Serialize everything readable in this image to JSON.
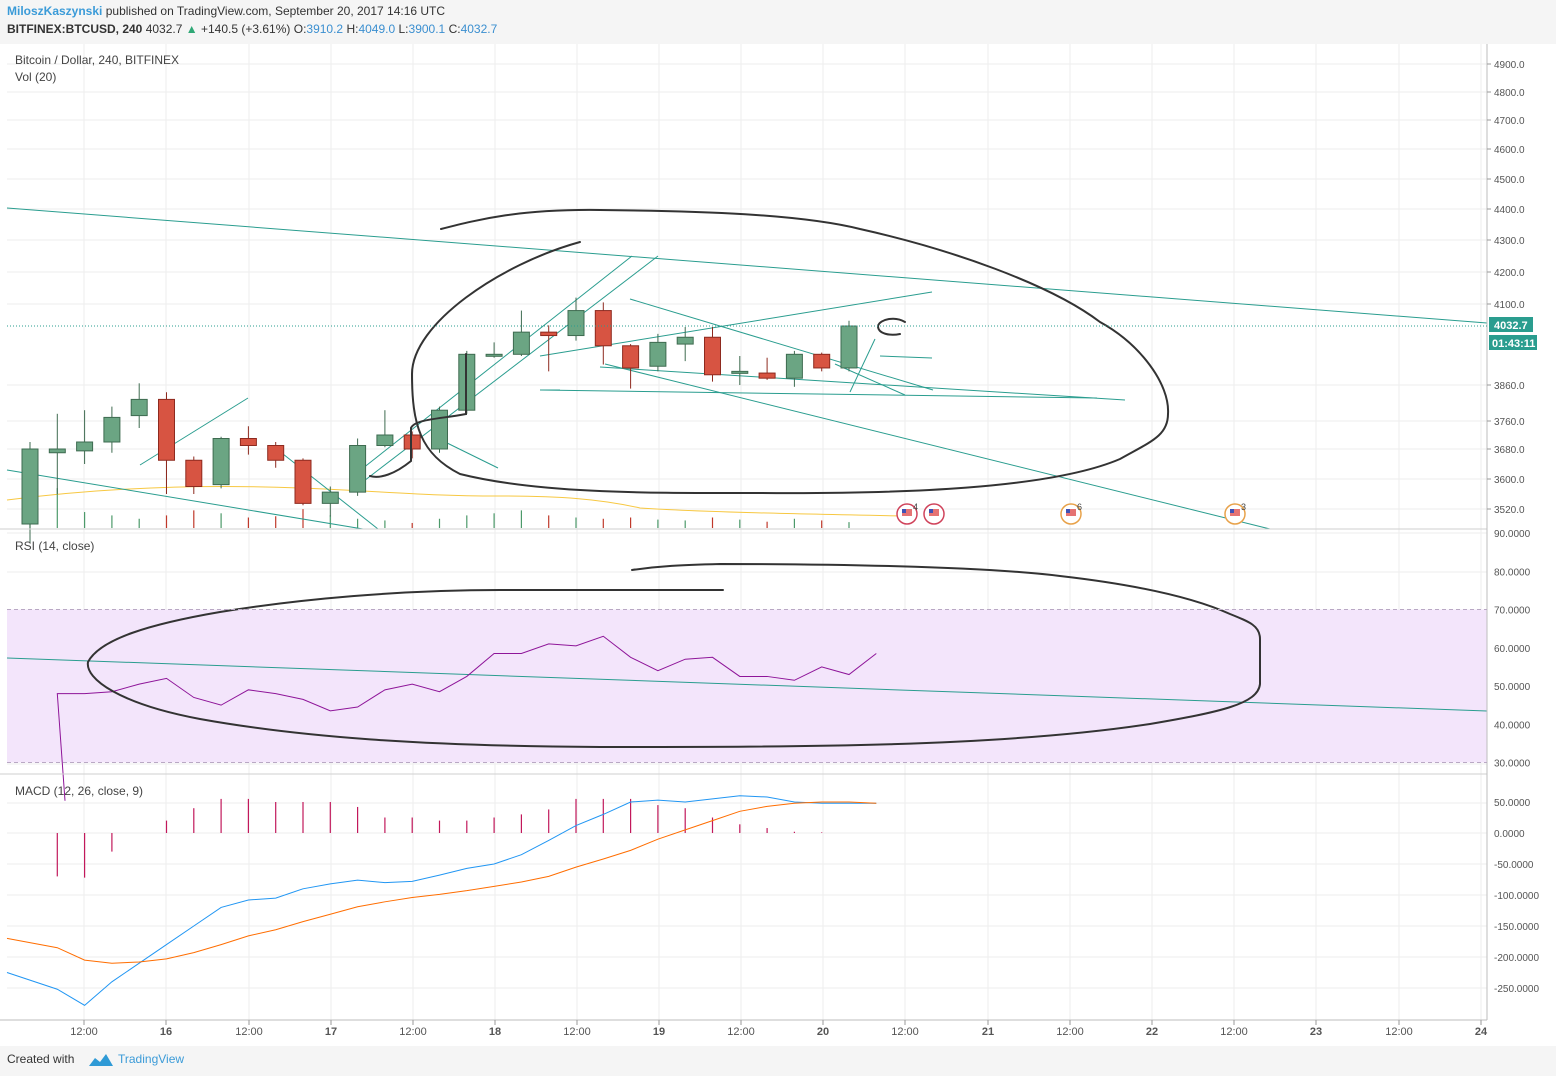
{
  "header": {
    "author": "MiloszKaszynski",
    "published_text": "published on TradingView.com, September 20, 2017 14:16 UTC",
    "symbol": "BITFINEX:BTCUSD, 240",
    "last": "4032.7",
    "change": "+140.5 (+3.61%)",
    "o_label": "O:",
    "o_value": "3910.2",
    "h_label": "H:",
    "h_value": "4049.0",
    "l_label": "L:",
    "l_value": "3900.1",
    "c_label": "C:",
    "c_value": "4032.7"
  },
  "footer": {
    "created_with": "Created with",
    "brand": "TradingView"
  },
  "colors": {
    "up": "#6ba583",
    "down": "#d75442",
    "rsi": "#8e1599",
    "rsi_band": "#f3e5fb",
    "macd": "#2196f3",
    "signal": "#ff6d00",
    "hist": "#c2185b",
    "trend": "#2a9d8f",
    "ma": "#f7c842",
    "annot": "#333333"
  },
  "chart_data": [
    {
      "type": "candlestick",
      "title": "Bitcoin / Dollar, 240, BITFINEX",
      "subtitle": "Vol (20)",
      "y_ticks": [
        "4900.0",
        "4800.0",
        "4700.0",
        "4600.0",
        "4500.0",
        "4400.0",
        "4300.0",
        "4200.0",
        "4100.0",
        "3860.0",
        "3760.0",
        "3680.0",
        "3600.0",
        "3520.0"
      ],
      "price_label": "4032.7",
      "countdown": "01:43:11",
      "event_counts": [
        "4",
        "6",
        "3"
      ],
      "candles": [
        {
          "o": 3480,
          "h": 3700,
          "l": 3430,
          "c": 3680
        },
        {
          "o": 3670,
          "h": 3780,
          "l": 3560,
          "c": 3680
        },
        {
          "o": 3675,
          "h": 3790,
          "l": 3640,
          "c": 3700
        },
        {
          "o": 3700,
          "h": 3800,
          "l": 3670,
          "c": 3770
        },
        {
          "o": 3775,
          "h": 3865,
          "l": 3740,
          "c": 3820
        },
        {
          "o": 3820,
          "h": 3840,
          "l": 3560,
          "c": 3650
        },
        {
          "o": 3650,
          "h": 3660,
          "l": 3560,
          "c": 3580
        },
        {
          "o": 3585,
          "h": 3715,
          "l": 3575,
          "c": 3710
        },
        {
          "o": 3710,
          "h": 3745,
          "l": 3665,
          "c": 3690
        },
        {
          "o": 3690,
          "h": 3700,
          "l": 3630,
          "c": 3650
        },
        {
          "o": 3650,
          "h": 3655,
          "l": 3530,
          "c": 3535
        },
        {
          "o": 3535,
          "h": 3580,
          "l": 3500,
          "c": 3565
        },
        {
          "o": 3565,
          "h": 3710,
          "l": 3555,
          "c": 3690
        },
        {
          "o": 3690,
          "h": 3790,
          "l": 3685,
          "c": 3720
        },
        {
          "o": 3720,
          "h": 3730,
          "l": 3655,
          "c": 3680
        },
        {
          "o": 3680,
          "h": 3800,
          "l": 3670,
          "c": 3790
        },
        {
          "o": 3790,
          "h": 3960,
          "l": 3780,
          "c": 3950
        },
        {
          "o": 3950,
          "h": 3985,
          "l": 3940,
          "c": 3950
        },
        {
          "o": 3950,
          "h": 4080,
          "l": 3945,
          "c": 4015
        },
        {
          "o": 4015,
          "h": 4035,
          "l": 3900,
          "c": 4005
        },
        {
          "o": 4005,
          "h": 4120,
          "l": 3990,
          "c": 4080
        },
        {
          "o": 4080,
          "h": 4105,
          "l": 3920,
          "c": 3975
        },
        {
          "o": 3975,
          "h": 3980,
          "l": 3850,
          "c": 3910
        },
        {
          "o": 3915,
          "h": 4010,
          "l": 3900,
          "c": 3985
        },
        {
          "o": 3980,
          "h": 4030,
          "l": 3930,
          "c": 4000
        },
        {
          "o": 4000,
          "h": 4030,
          "l": 3870,
          "c": 3890
        },
        {
          "o": 3900,
          "h": 3945,
          "l": 3860,
          "c": 3900
        },
        {
          "o": 3895,
          "h": 3940,
          "l": 3875,
          "c": 3880
        },
        {
          "o": 3880,
          "h": 3960,
          "l": 3855,
          "c": 3950
        },
        {
          "o": 3950,
          "h": 3955,
          "l": 3900,
          "c": 3910
        },
        {
          "o": 3910,
          "h": 4049,
          "l": 3900,
          "c": 4033
        }
      ],
      "volume": [
        40,
        95,
        38,
        30,
        22,
        30,
        42,
        35,
        25,
        28,
        45,
        30,
        22,
        18,
        12,
        22,
        30,
        35,
        42,
        30,
        25,
        22,
        25,
        20,
        18,
        25,
        20,
        15,
        22,
        18,
        14
      ]
    },
    {
      "type": "line",
      "title": "RSI (14, close)",
      "y_ticks": [
        "90.0000",
        "80.0000",
        "70.0000",
        "60.0000",
        "50.0000",
        "40.0000",
        "30.0000"
      ],
      "band": [
        30,
        70
      ],
      "values": [
        20,
        48,
        48,
        48.5,
        50.5,
        52,
        47,
        45,
        49,
        48,
        46.5,
        43.5,
        44.5,
        49,
        50.5,
        48.5,
        52.5,
        58.5,
        58.5,
        61,
        60.5,
        63,
        57.5,
        54,
        57,
        57.5,
        52.5,
        52.5,
        51.5,
        55,
        53,
        58.5
      ]
    },
    {
      "type": "macd",
      "title": "MACD (12, 26, close, 9)",
      "y_ticks": [
        "50.0000",
        "0.0000",
        "-50.0000",
        "-100.0000",
        "-150.0000",
        "-200.0000",
        "-250.0000"
      ],
      "macd": [
        -225,
        -252,
        -278,
        -240,
        -210,
        -180,
        -150,
        -120,
        -108,
        -105,
        -90,
        -82,
        -76,
        -80,
        -78,
        -68,
        -57,
        -50,
        -35,
        -12,
        12,
        30,
        50,
        53,
        50,
        55,
        60,
        58,
        50,
        48,
        48,
        48
      ],
      "signal": [
        -170,
        -185,
        -205,
        -210,
        -208,
        -203,
        -193,
        -180,
        -166,
        -156,
        -143,
        -131,
        -119,
        -111,
        -104,
        -99,
        -93,
        -86,
        -79,
        -70,
        -55,
        -42,
        -28,
        -10,
        5,
        20,
        35,
        43,
        48,
        50,
        50,
        48
      ],
      "histogram": [
        null,
        -70,
        -72,
        -30,
        null,
        20,
        40,
        55,
        55,
        50,
        50,
        50,
        42,
        25,
        25,
        20,
        20,
        25,
        30,
        38,
        55,
        55,
        55,
        45,
        40,
        25,
        14,
        8,
        2,
        1,
        0,
        0
      ]
    }
  ],
  "x_axis": {
    "labels": [
      "12:00",
      "16",
      "12:00",
      "17",
      "12:00",
      "18",
      "12:00",
      "19",
      "12:00",
      "20",
      "12:00",
      "21",
      "12:00",
      "22",
      "12:00",
      "23",
      "12:00",
      "24"
    ]
  }
}
